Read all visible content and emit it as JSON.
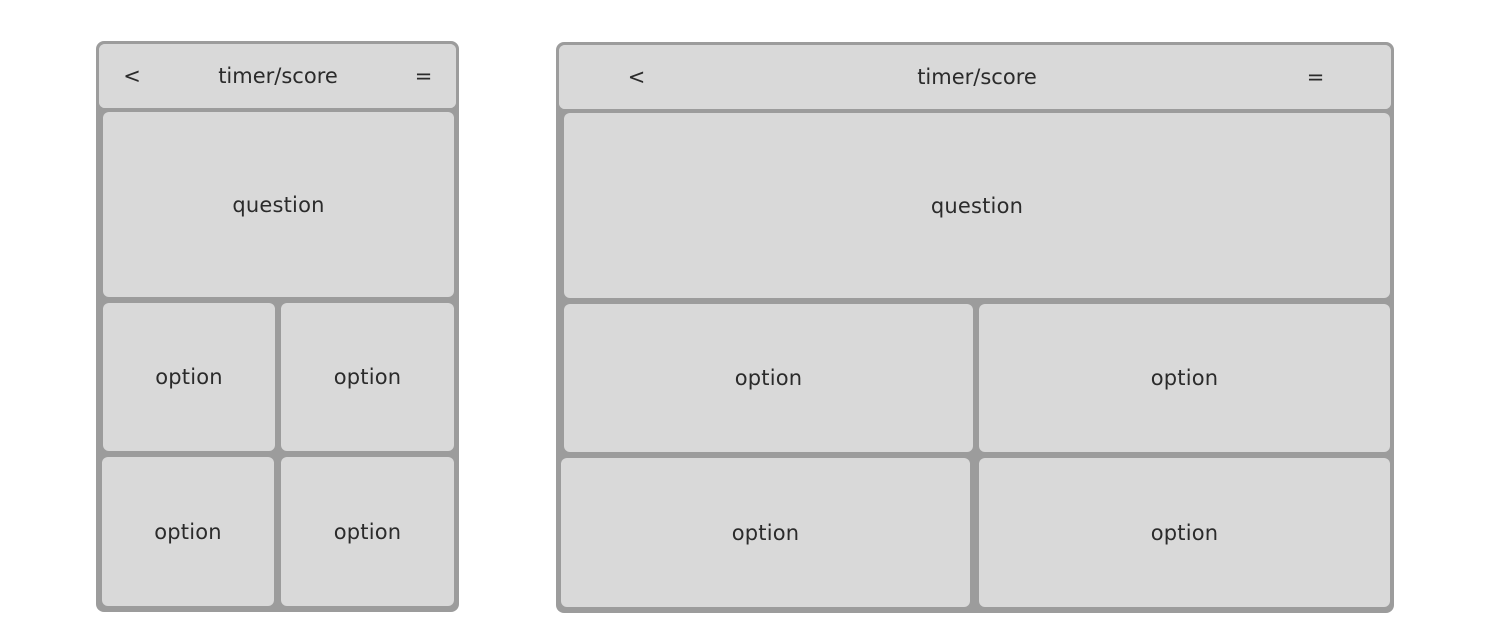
{
  "layouts": [
    {
      "variant": "portrait",
      "header": {
        "back_label": "<",
        "title": "timer/score",
        "menu_label": "="
      },
      "question_label": "question",
      "options": [
        "option",
        "option",
        "option",
        "option"
      ]
    },
    {
      "variant": "landscape",
      "header": {
        "back_label": "<",
        "title": "timer/score",
        "menu_label": "="
      },
      "question_label": "question",
      "options": [
        "option",
        "option",
        "option",
        "option"
      ]
    }
  ]
}
